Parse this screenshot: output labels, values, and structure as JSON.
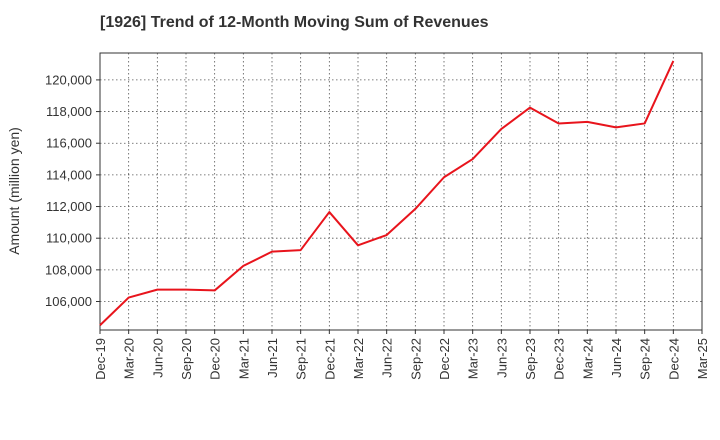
{
  "chart_data": {
    "type": "line",
    "title": "[1926]  Trend of 12-Month Moving Sum of Revenues",
    "xlabel": "",
    "ylabel": "Amount (million yen)",
    "categories": [
      "Dec-19",
      "Mar-20",
      "Jun-20",
      "Sep-20",
      "Dec-20",
      "Mar-21",
      "Jun-21",
      "Sep-21",
      "Dec-21",
      "Mar-22",
      "Jun-22",
      "Sep-22",
      "Dec-22",
      "Mar-23",
      "Jun-23",
      "Sep-23",
      "Dec-23",
      "Mar-24",
      "Jun-24",
      "Sep-24",
      "Dec-24",
      "Mar-25"
    ],
    "ylim": [
      104200,
      121700
    ],
    "yticks": [
      106000,
      108000,
      110000,
      112000,
      114000,
      116000,
      118000,
      120000
    ],
    "ytick_labels": [
      "106,000",
      "108,000",
      "110,000",
      "112,000",
      "114,000",
      "116,000",
      "118,000",
      "120,000"
    ],
    "grid": true,
    "series": [
      {
        "color": "#e8141c",
        "values": [
          104500,
          106250,
          106750,
          106750,
          106700,
          108250,
          109150,
          109250,
          111650,
          109550,
          110200,
          111850,
          113850,
          115000,
          116900,
          118250,
          117250,
          117350,
          117000,
          117250,
          121200,
          null
        ]
      }
    ]
  }
}
